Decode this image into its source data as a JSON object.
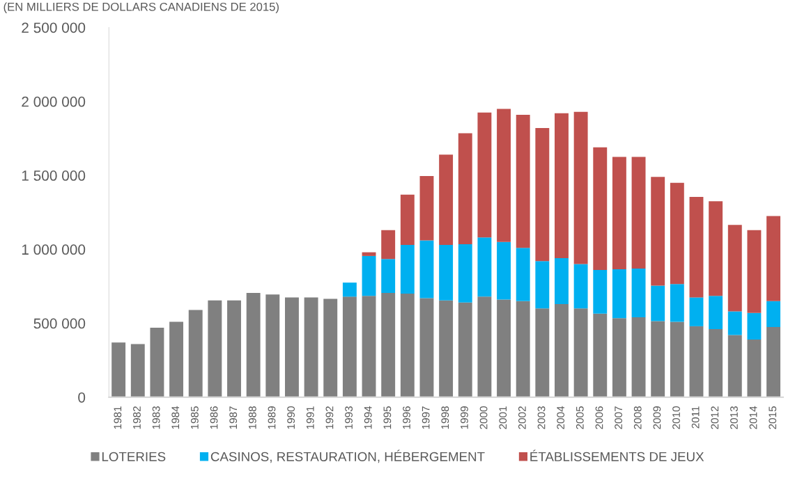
{
  "chart_data": {
    "type": "bar",
    "title": "(EN MILLIERS DE DOLLARS CANADIENS DE 2015)",
    "categories": [
      "1981",
      "1982",
      "1983",
      "1984",
      "1985",
      "1986",
      "1987",
      "1988",
      "1989",
      "1990",
      "1991",
      "1992",
      "1993",
      "1994",
      "1995",
      "1996",
      "1997",
      "1998",
      "1999",
      "2000",
      "2001",
      "2002",
      "2003",
      "2004",
      "2005",
      "2006",
      "2007",
      "2008",
      "2009",
      "2010",
      "2011",
      "2012",
      "2013",
      "2014",
      "2015"
    ],
    "stacked": true,
    "series": [
      {
        "name": "LOTERIES",
        "color": "#808080",
        "values": [
          370000,
          360000,
          470000,
          510000,
          590000,
          655000,
          655000,
          705000,
          695000,
          675000,
          675000,
          665000,
          680000,
          685000,
          705000,
          700000,
          670000,
          655000,
          640000,
          680000,
          660000,
          650000,
          600000,
          630000,
          600000,
          565000,
          535000,
          540000,
          515000,
          510000,
          480000,
          460000,
          420000,
          390000,
          475000
        ]
      },
      {
        "name": "CASINOS, RESTAURATION, HÉBERGEMENT",
        "color": "#00b0f0",
        "values": [
          null,
          null,
          null,
          null,
          null,
          null,
          null,
          null,
          null,
          null,
          null,
          null,
          95000,
          270000,
          230000,
          330000,
          390000,
          375000,
          395000,
          400000,
          390000,
          360000,
          320000,
          310000,
          300000,
          295000,
          330000,
          330000,
          240000,
          255000,
          195000,
          225000,
          160000,
          180000,
          175000
        ]
      },
      {
        "name": "ÉTABLISSEMENTS DE JEUX",
        "color": "#c0504d",
        "values": [
          null,
          null,
          null,
          null,
          null,
          null,
          null,
          null,
          null,
          null,
          null,
          null,
          null,
          25000,
          195000,
          340000,
          435000,
          610000,
          750000,
          845000,
          900000,
          900000,
          900000,
          980000,
          1030000,
          830000,
          760000,
          755000,
          735000,
          685000,
          680000,
          640000,
          585000,
          560000,
          575000
        ]
      }
    ],
    "ylim": [
      0,
      2500000
    ],
    "yticks": [
      {
        "value": 0,
        "label": "0"
      },
      {
        "value": 500000,
        "label": "500 000"
      },
      {
        "value": 1000000,
        "label": "1 000 000"
      },
      {
        "value": 1500000,
        "label": "1 500 000"
      },
      {
        "value": 2000000,
        "label": "2 000 000"
      },
      {
        "value": 2500000,
        "label": "2 500 000"
      }
    ],
    "legend": "bottom"
  }
}
